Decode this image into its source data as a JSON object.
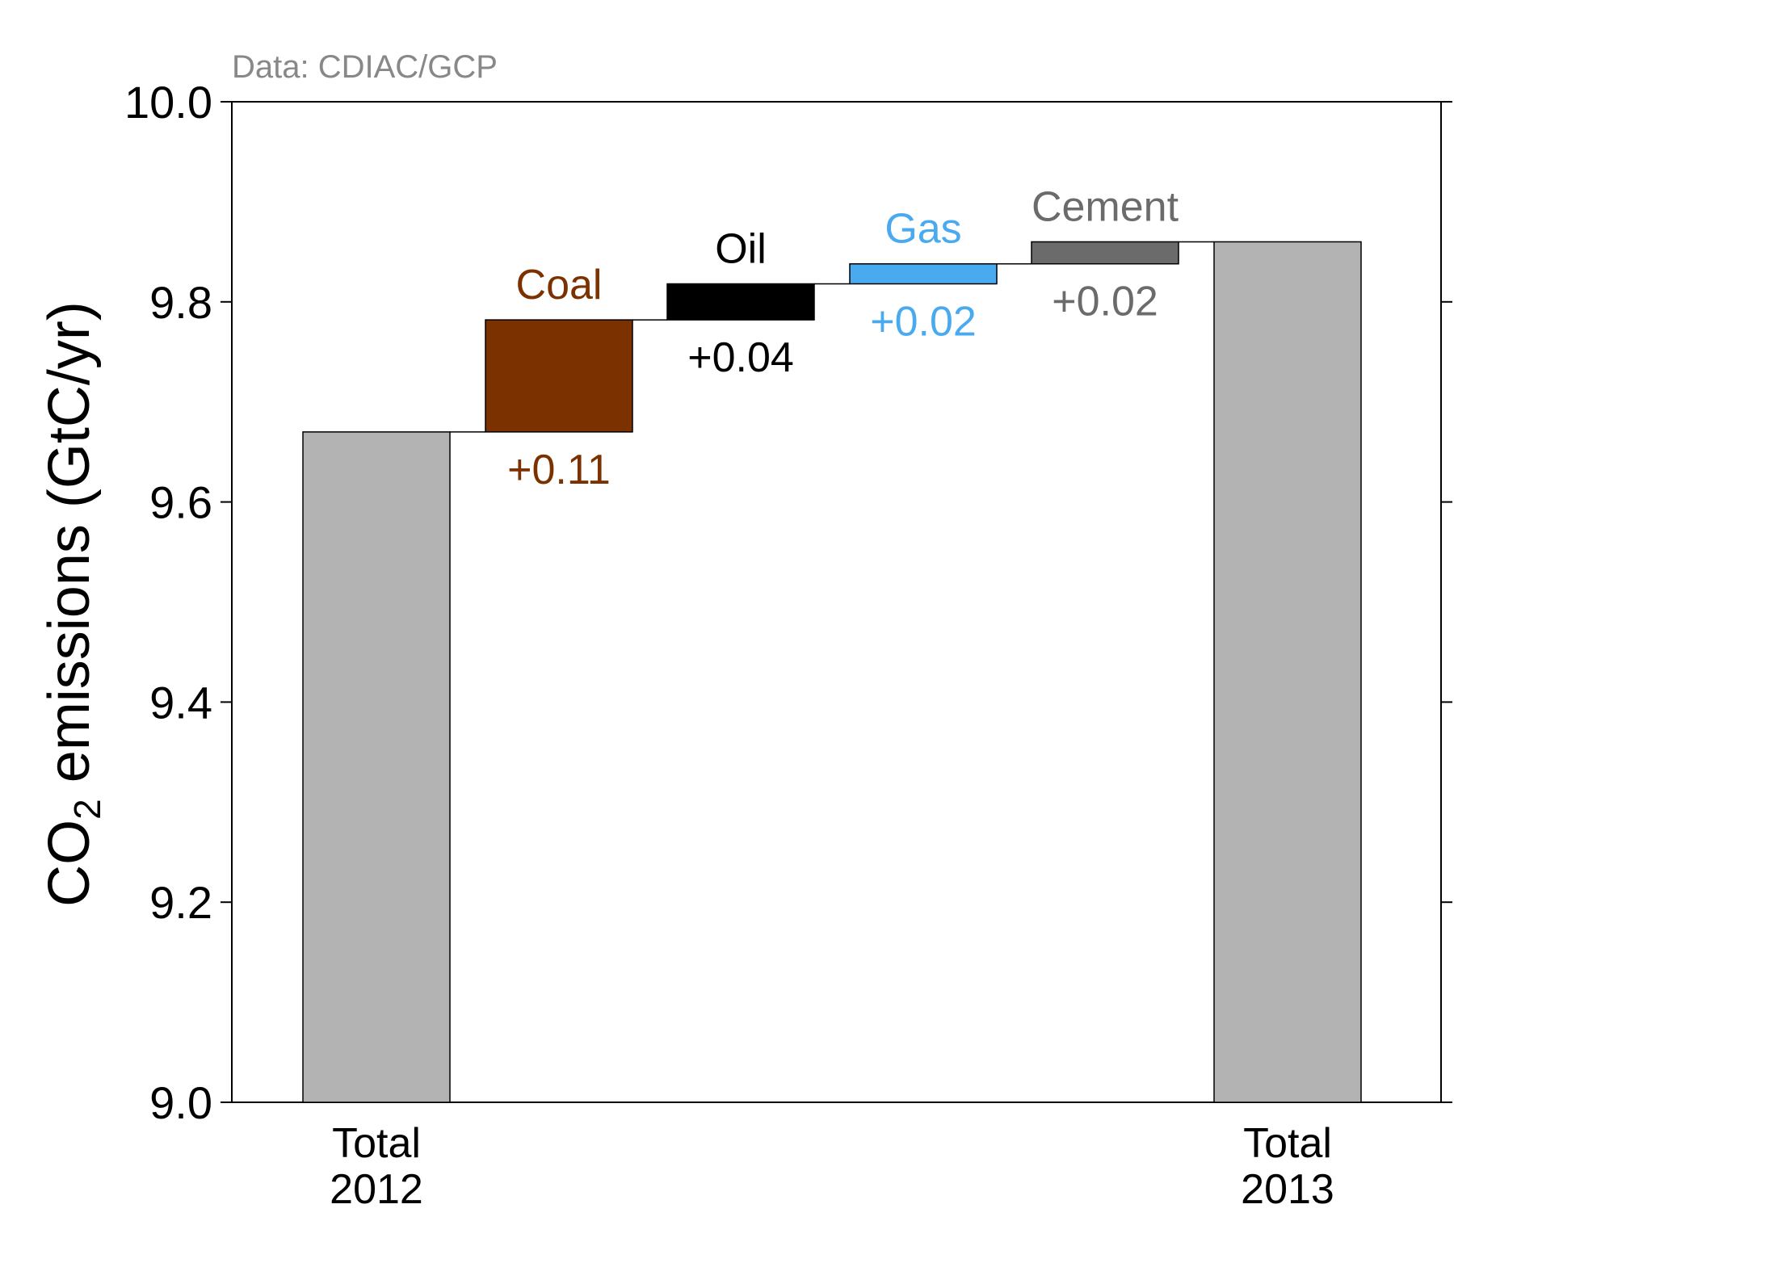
{
  "chart_data": {
    "type": "waterfall",
    "source_note": "Data: CDIAC/GCP",
    "ylabel_prefix": "CO",
    "ylabel_subscript": "2",
    "ylabel_suffix": " emissions (GtC/yr)",
    "ylim": [
      9.0,
      10.0
    ],
    "yticks": [
      {
        "value": 9.0,
        "label": "9.0"
      },
      {
        "value": 9.2,
        "label": "9.2"
      },
      {
        "value": 9.4,
        "label": "9.4"
      },
      {
        "value": 9.6,
        "label": "9.6"
      },
      {
        "value": 9.8,
        "label": "9.8"
      },
      {
        "value": 10.0,
        "label": "10.0"
      }
    ],
    "grid": false,
    "totals": [
      {
        "id": "total-2012",
        "label_line1": "Total",
        "label_line2": "2012",
        "value": 9.67,
        "color": "#b3b3b3"
      },
      {
        "id": "total-2013",
        "label_line1": "Total",
        "label_line2": "2013",
        "value": 9.86,
        "color": "#b3b3b3"
      }
    ],
    "steps": [
      {
        "id": "coal",
        "name": "Coal",
        "start": 9.67,
        "end": 9.782,
        "value_label": "+0.11",
        "color": "#7b3200"
      },
      {
        "id": "oil",
        "name": "Oil",
        "start": 9.782,
        "end": 9.818,
        "value_label": "+0.04",
        "color": "#000000"
      },
      {
        "id": "gas",
        "name": "Gas",
        "start": 9.818,
        "end": 9.838,
        "value_label": "+0.02",
        "color": "#4aaaf0"
      },
      {
        "id": "cement",
        "name": "Cement",
        "start": 9.838,
        "end": 9.86,
        "value_label": "+0.02",
        "color": "#6b6b6b"
      }
    ],
    "label_colors": {
      "coal": "#7b3200",
      "oil": "#000000",
      "gas": "#4aaaf0",
      "cement": "#6b6b6b",
      "source_note": "#888888"
    }
  }
}
